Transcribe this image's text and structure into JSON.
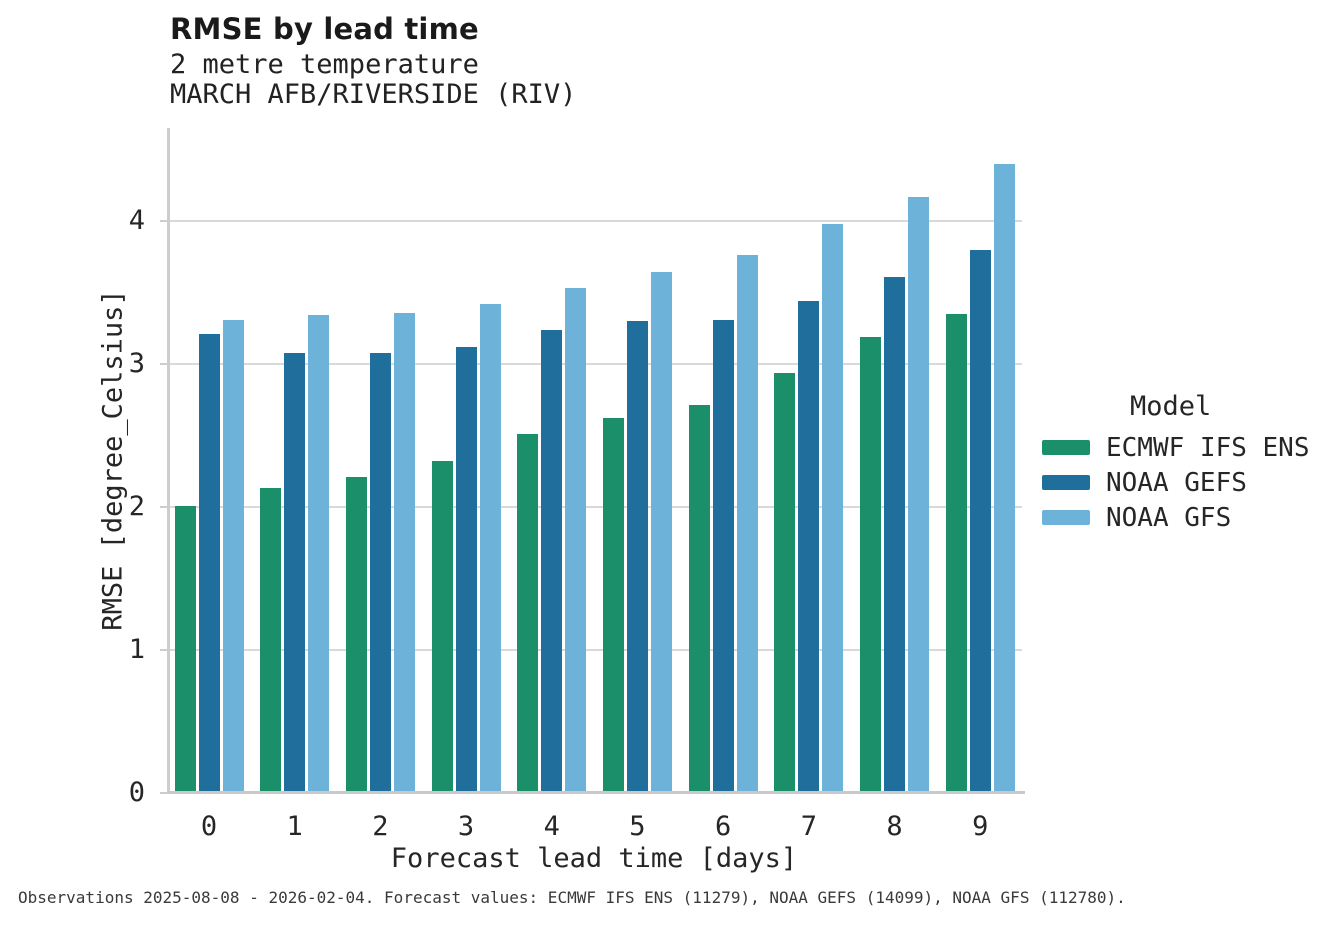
{
  "title": "RMSE by lead time",
  "subtitle_line1": "2 metre temperature",
  "subtitle_line2": "MARCH AFB/RIVERSIDE (RIV)",
  "footer": "Observations 2025-08-08 - 2026-02-04. Forecast values: ECMWF IFS ENS (11279), NOAA GEFS (14099), NOAA GFS (112780).",
  "chart_data": {
    "type": "bar",
    "title": "RMSE by lead time",
    "subtitle": [
      "2 metre temperature",
      "MARCH AFB/RIVERSIDE (RIV)"
    ],
    "xlabel": "Forecast lead time [days]",
    "ylabel": "RMSE [degree_Celsius]",
    "categories": [
      "0",
      "1",
      "2",
      "3",
      "4",
      "5",
      "6",
      "7",
      "8",
      "9"
    ],
    "yticks": [
      0,
      1,
      2,
      3,
      4
    ],
    "ylim": [
      0,
      4.65
    ],
    "grid": true,
    "legend_position": "right",
    "legend_title": "Model",
    "series": [
      {
        "name": "ECMWF IFS ENS",
        "color": "#1b8e6a",
        "values": [
          2.01,
          2.13,
          2.21,
          2.32,
          2.51,
          2.62,
          2.71,
          2.94,
          3.19,
          3.35
        ]
      },
      {
        "name": "NOAA GEFS",
        "color": "#1f6e9c",
        "values": [
          3.21,
          3.08,
          3.08,
          3.12,
          3.24,
          3.3,
          3.31,
          3.44,
          3.61,
          3.8
        ]
      },
      {
        "name": "NOAA GFS",
        "color": "#6db3d9",
        "values": [
          3.31,
          3.34,
          3.36,
          3.42,
          3.53,
          3.64,
          3.76,
          3.98,
          4.17,
          4.4
        ]
      }
    ]
  }
}
